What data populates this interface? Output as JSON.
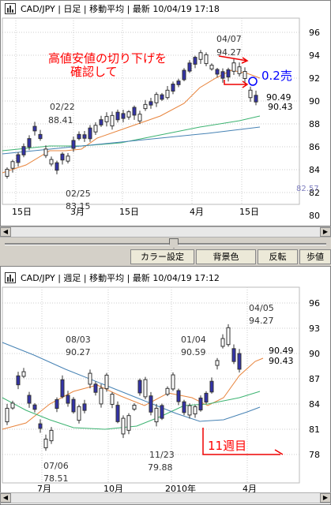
{
  "panel_daily": {
    "title": "CAD/JPY | 日足 | 移動平均 | 最新 10/04/19 17:18",
    "y_ticks": [
      "96",
      "94",
      "92",
      "90",
      "88",
      "86",
      "84",
      "82",
      "80"
    ],
    "x_ticks": [
      "15日",
      "3月",
      "15日",
      "4月",
      "15日"
    ],
    "price_tag": "82.57",
    "labels": {
      "high_date": "02/22",
      "high_val": "88.41",
      "low_date": "02/25",
      "low_val": "83.15",
      "peak_date": "04/07",
      "peak_val": "94.27",
      "last_hi": "90.49",
      "last_lo": "90.43"
    },
    "annotation_line1": "高値安値の切り下げを",
    "annotation_line2": "確認して",
    "sell_label": "0.2売"
  },
  "toolbar": {
    "color_settings": "カラー設定",
    "background_color": "背景色",
    "invert": "反転",
    "step_value": "歩値"
  },
  "panel_weekly": {
    "title": "CAD/JPY | 週足 | 移動平均 | 最新 10/04/19 17:12",
    "y_ticks": [
      "96",
      "93",
      "90",
      "87",
      "84",
      "81",
      "78"
    ],
    "x_ticks": [
      "7月",
      "10月",
      "2010年",
      "4月"
    ],
    "labels": {
      "d1": "08/03",
      "v1": "90.27",
      "d2": "01/04",
      "v2": "90.59",
      "d3": "04/05",
      "v3": "94.27",
      "d4": "07/06",
      "v4": "78.51",
      "d5": "11/23",
      "v5": "79.88",
      "last_hi": "90.49",
      "last_lo": "90.43"
    },
    "week_label": "11週目"
  },
  "colors": {
    "annotation": "#ff0000",
    "sell": "#0000ff",
    "candle_bear": "#3333aa",
    "ma_short": "#e8843c",
    "ma_mid": "#3cb371",
    "ma_long": "#4682b4"
  }
}
